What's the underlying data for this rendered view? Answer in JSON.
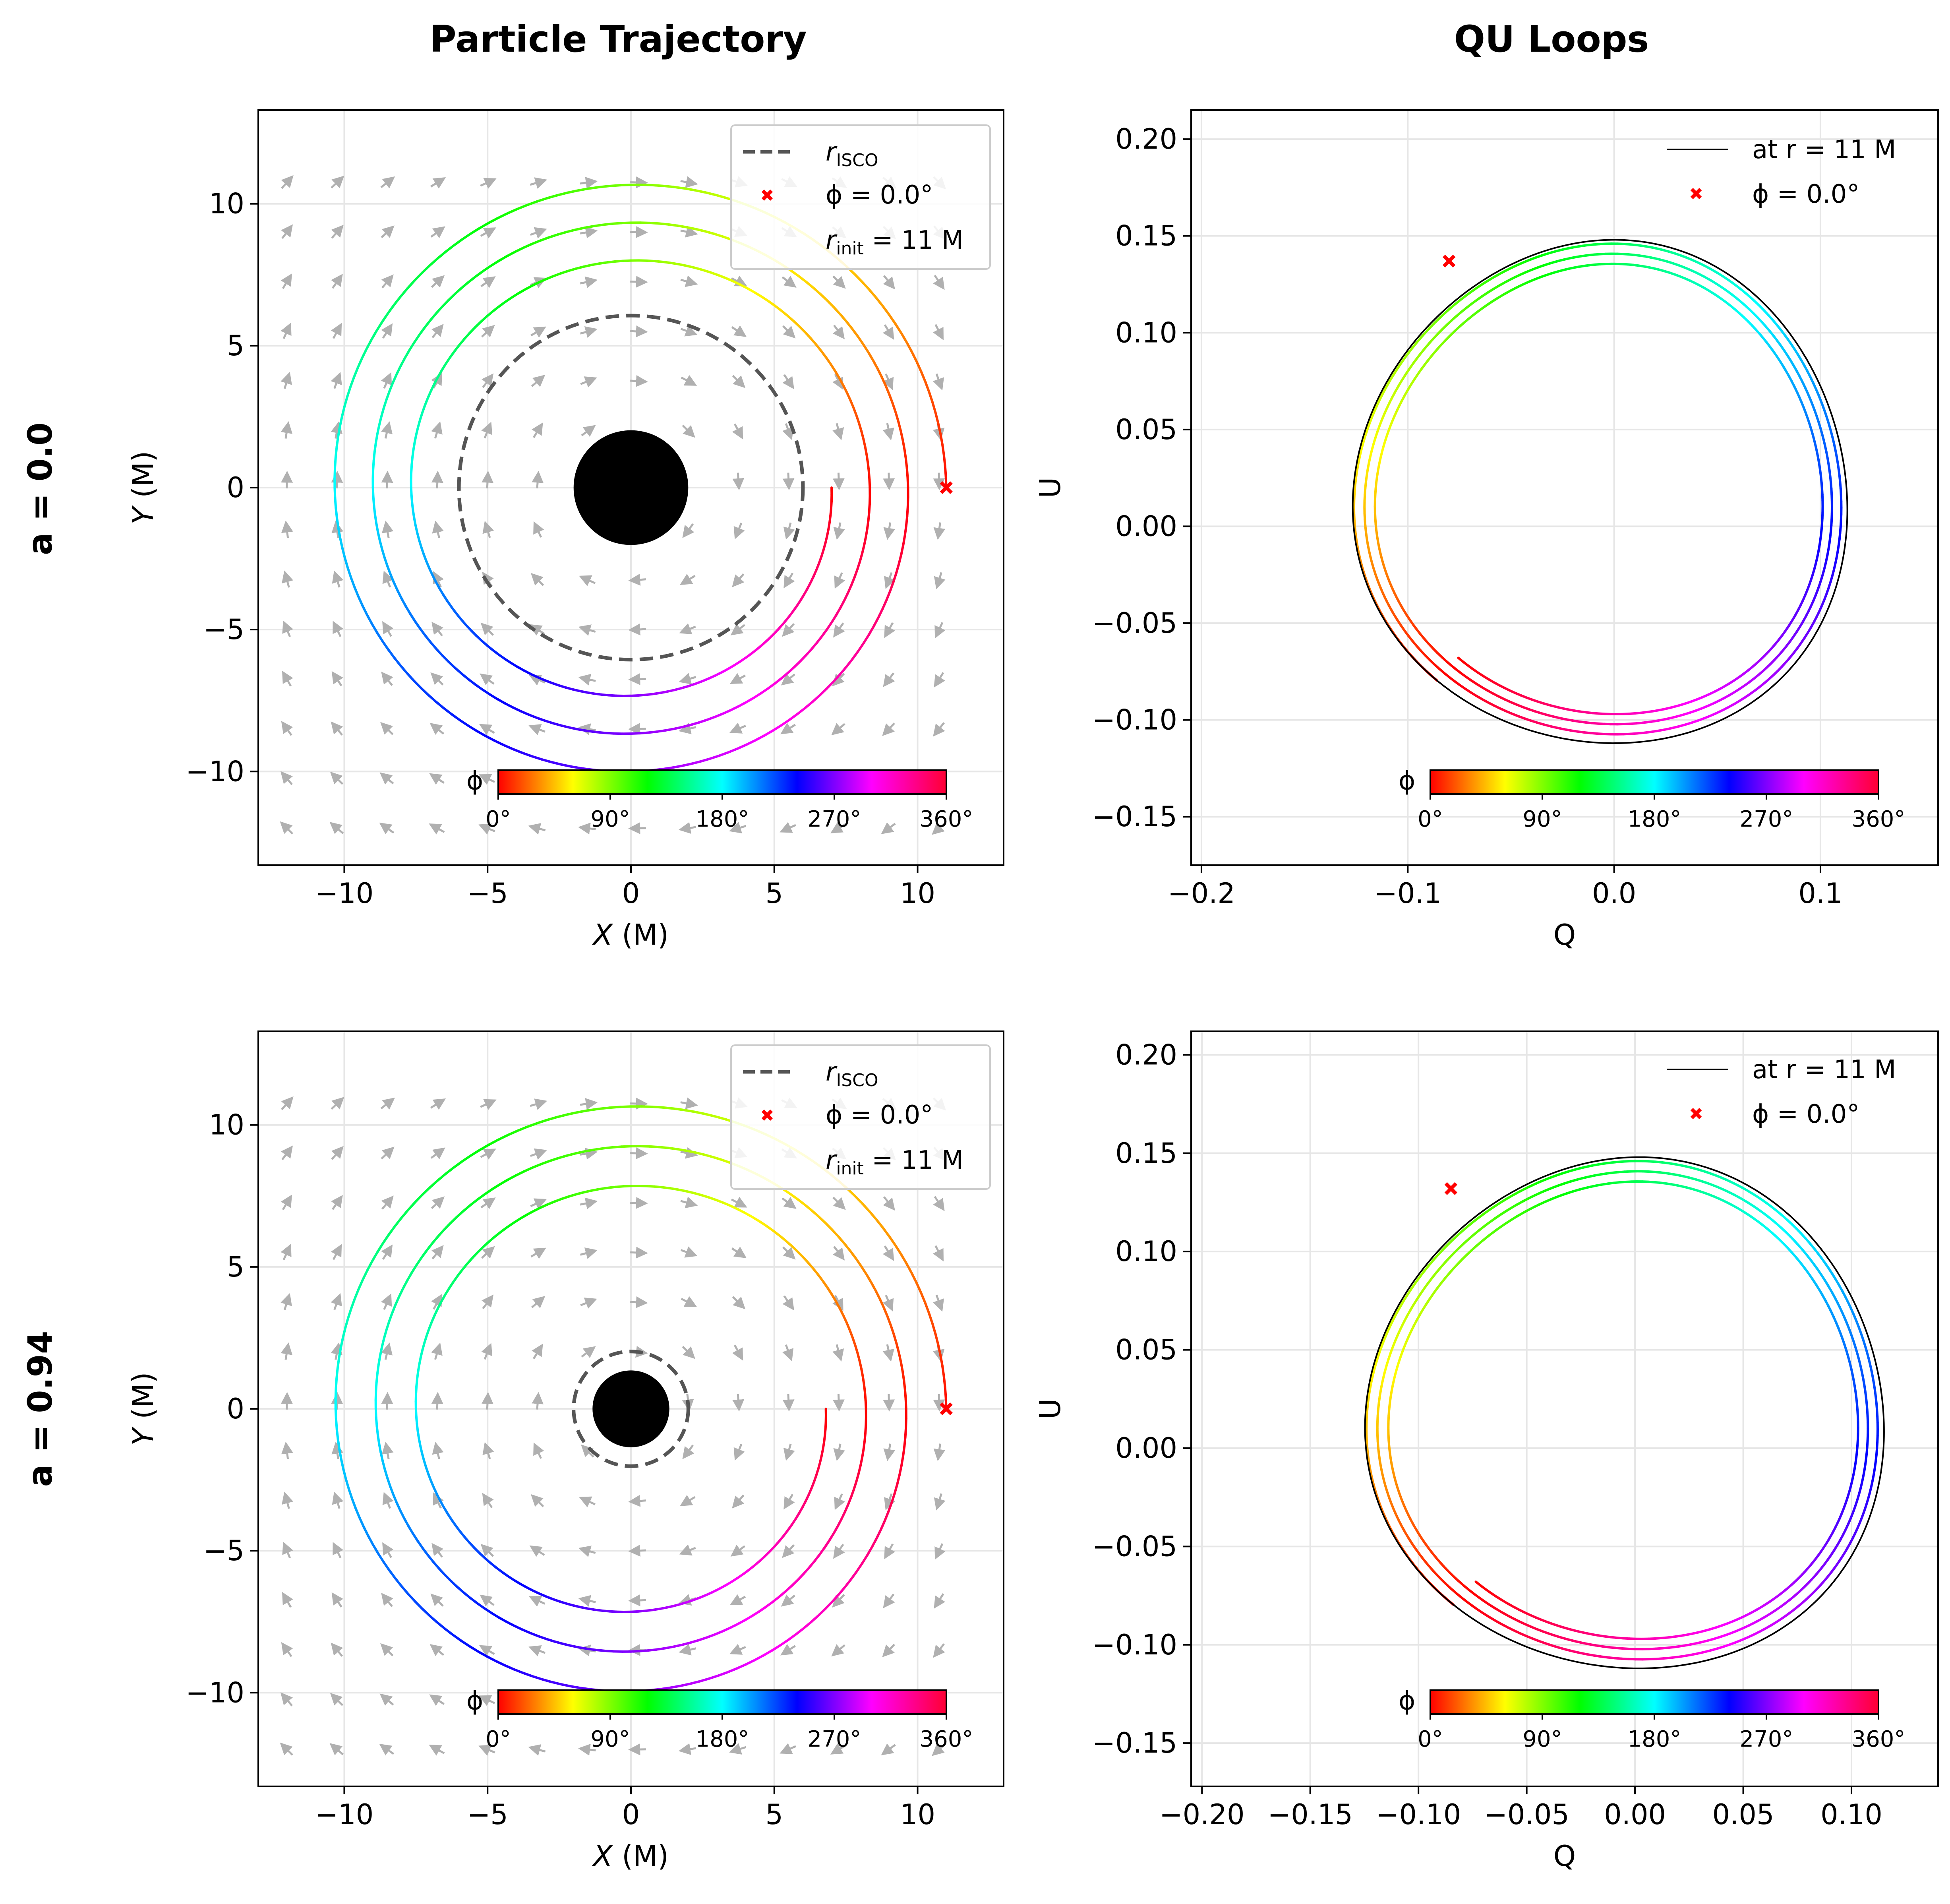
{
  "figure": {
    "col_titles": [
      "Particle Trajectory",
      "QU Loops"
    ],
    "row_labels": [
      "a = 0.0",
      "a = 0.94"
    ]
  },
  "colorbar": {
    "label": "ϕ",
    "ticks": [
      "0°",
      "90°",
      "180°",
      "270°",
      "360°"
    ]
  },
  "legend_traj": {
    "isco": "r",
    "isco_sub": "ISCO",
    "start": "ϕ = 0.0°",
    "rinit": "r",
    "rinit_sub": "init",
    "rinit_val": " = 11 M"
  },
  "legend_qu": {
    "ref": "at r = 11 M",
    "start": "ϕ = 0.0°"
  },
  "colors": {
    "start_marker": "#ff0000",
    "isco": "#555555",
    "grid": "#e6e6e6",
    "arrows": "#b0b0b0",
    "black_hole": "#000000"
  },
  "chart_data": [
    {
      "type": "line",
      "panel": "trajectory",
      "row": 0,
      "spin": 0.0,
      "title": "Particle Trajectory",
      "xlabel": "X (M)",
      "ylabel": "Y (M)",
      "xlim": [
        -13,
        13
      ],
      "ylim": [
        -13.3,
        13.3
      ],
      "xticks": [
        -10,
        -5,
        0,
        5,
        10
      ],
      "yticks": [
        -10,
        -5,
        0,
        5,
        10
      ],
      "r_isco": 6.0,
      "horizon_r": 2.0,
      "r_init": 11,
      "start_point": [
        11,
        0
      ],
      "spiral": {
        "r_start": 11.0,
        "r_end": 7.0,
        "phi_total_deg": 1080,
        "color_by": "phi_mod_360"
      },
      "legend": [
        "r_ISCO",
        "ϕ = 0.0°",
        "r_init = 11 M"
      ],
      "grid": true
    },
    {
      "type": "line",
      "panel": "qu_loops",
      "row": 0,
      "spin": 0.0,
      "title": "QU Loops",
      "xlabel": "Q",
      "ylabel": "U",
      "xlim": [
        -0.205,
        0.157
      ],
      "ylim": [
        -0.175,
        0.215
      ],
      "xticks": [
        -0.2,
        -0.1,
        0.0,
        0.1
      ],
      "xtick_labels": [
        "−0.2",
        "−0.1",
        "0.0",
        "0.1"
      ],
      "yticks": [
        -0.15,
        -0.1,
        -0.05,
        0.0,
        0.05,
        0.1,
        0.15,
        0.2
      ],
      "ytick_labels": [
        "−0.15",
        "−0.10",
        "−0.05",
        "0.00",
        "0.05",
        "0.10",
        "0.15",
        "0.20"
      ],
      "start_point": [
        -0.08,
        0.137
      ],
      "reference_loop": "at r = 11 M",
      "legend": [
        "at r = 11 M",
        "ϕ = 0.0°"
      ],
      "grid": true
    },
    {
      "type": "line",
      "panel": "trajectory",
      "row": 1,
      "spin": 0.94,
      "title": "",
      "xlabel": "X (M)",
      "ylabel": "Y (M)",
      "xlim": [
        -13,
        13
      ],
      "ylim": [
        -13.3,
        13.3
      ],
      "xticks": [
        -10,
        -5,
        0,
        5,
        10
      ],
      "yticks": [
        -10,
        -5,
        0,
        5,
        10
      ],
      "r_isco": 2.0,
      "horizon_r": 1.34,
      "r_init": 11,
      "start_point": [
        11,
        0
      ],
      "spiral": {
        "r_start": 11.0,
        "r_end": 6.8,
        "phi_total_deg": 1080,
        "color_by": "phi_mod_360"
      },
      "legend": [
        "r_ISCO",
        "ϕ = 0.0°",
        "r_init = 11 M"
      ],
      "grid": true
    },
    {
      "type": "line",
      "panel": "qu_loops",
      "row": 1,
      "spin": 0.94,
      "title": "",
      "xlabel": "Q",
      "ylabel": "U",
      "xlim": [
        -0.205,
        0.14
      ],
      "ylim": [
        -0.172,
        0.212
      ],
      "xticks": [
        -0.2,
        -0.15,
        -0.1,
        -0.05,
        0.0,
        0.05,
        0.1
      ],
      "xtick_labels": [
        "−0.20",
        "−0.15",
        "−0.10",
        "−0.05",
        "0.00",
        "0.05",
        "0.10"
      ],
      "yticks": [
        -0.15,
        -0.1,
        -0.05,
        0.0,
        0.05,
        0.1,
        0.15,
        0.2
      ],
      "ytick_labels": [
        "−0.15",
        "−0.10",
        "−0.05",
        "0.00",
        "0.05",
        "0.10",
        "0.15",
        "0.20"
      ],
      "start_point": [
        -0.085,
        0.132
      ],
      "reference_loop": "at r = 11 M",
      "legend": [
        "at r = 11 M",
        "ϕ = 0.0°"
      ],
      "grid": true
    }
  ]
}
